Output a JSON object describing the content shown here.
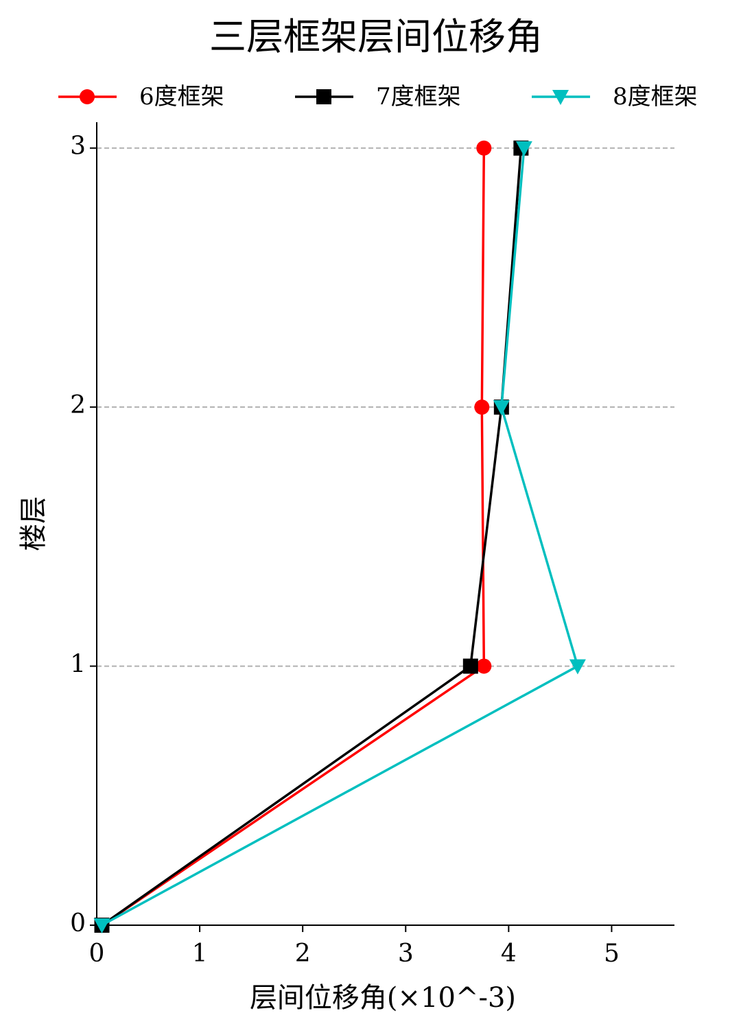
{
  "chart_data": {
    "type": "line",
    "title": "三层框架层间位移角",
    "xlabel": "层间位移角(×10^-3)",
    "ylabel": "楼层",
    "series": [
      {
        "name": "6度框架",
        "color": "#ff0000",
        "marker": "circle",
        "x": [
          0.05,
          3.76,
          3.74,
          3.76
        ],
        "y": [
          0,
          1,
          2,
          3
        ]
      },
      {
        "name": "7度框架",
        "color": "#000000",
        "marker": "square",
        "x": [
          0.05,
          3.63,
          3.93,
          4.12
        ],
        "y": [
          0,
          1,
          2,
          3
        ]
      },
      {
        "name": "8度框架",
        "color": "#00bfbf",
        "marker": "triangle-down",
        "x": [
          0.05,
          4.67,
          3.93,
          4.15
        ],
        "y": [
          0,
          1,
          2,
          3
        ]
      }
    ],
    "xlim": [
      0,
      5.61
    ],
    "xticks": [
      0,
      1,
      2,
      3,
      4,
      5
    ],
    "ylim": [
      0,
      3.1
    ],
    "yticks": [
      0,
      1,
      2,
      3
    ],
    "grid": "y",
    "legend": "upper center"
  }
}
